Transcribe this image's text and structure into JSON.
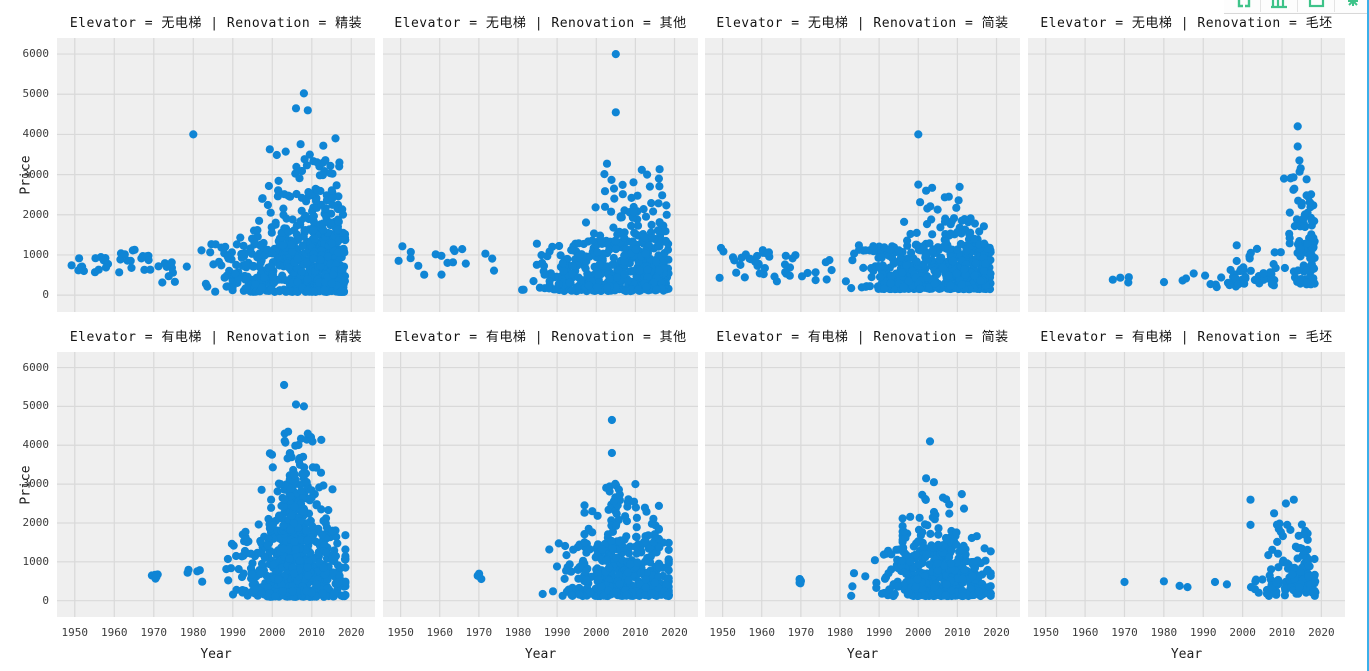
{
  "app": {
    "toolbar": {
      "buttons": [
        {
          "icon": "brackets-icon"
        },
        {
          "icon": "bar-chart-icon"
        },
        {
          "icon": "frame-icon"
        },
        {
          "icon": "settings-icon"
        }
      ],
      "accent_color": "#3ec389"
    },
    "right_edge_color": "#3bb0e9"
  },
  "chart_data": {
    "type": "scatter",
    "xlabel": "Year",
    "ylabel": "Price",
    "x_ticks": [
      1950,
      1960,
      1970,
      1980,
      1990,
      2000,
      2010,
      2020
    ],
    "y_ticks": [
      0,
      1000,
      2000,
      3000,
      4000,
      5000,
      6000
    ],
    "x_range": [
      1945.5,
      2026
    ],
    "y_range": [
      -420,
      6400
    ],
    "grid": true,
    "legend_position": "none",
    "point_color": "#0f85d5",
    "axes_bg": "#efefef",
    "grid_color": "#d9d9d9",
    "facet_rows": {
      "var": "Elevator",
      "values": [
        "无电梯",
        "有电梯"
      ]
    },
    "facet_cols": {
      "var": "Renovation",
      "values": [
        "精装",
        "其他",
        "简装",
        "毛坯"
      ]
    },
    "facets": [
      {
        "title": "Elevator = 无电梯 | Renovation = 精装",
        "row": 0,
        "col": 0,
        "clusters": [
          {
            "n": 14,
            "x": [
              1949,
              1960
            ],
            "y": [
              550,
              1000
            ],
            "xd": "u",
            "yd": "u"
          },
          {
            "n": 16,
            "x": [
              1961,
              1970
            ],
            "y": [
              550,
              1150
            ],
            "xd": "u",
            "yd": "u"
          },
          {
            "n": 10,
            "x": [
              1971,
              1980
            ],
            "y": [
              300,
              900
            ],
            "xd": "u",
            "yd": "u"
          },
          {
            "n": 520,
            "x": [
              1981,
              2018.5
            ],
            "y": [
              80,
              1550
            ],
            "xd": "r",
            "yd": {
              "p": 1.6
            }
          },
          {
            "n": 95,
            "x": [
              1992,
              2018
            ],
            "y": [
              1550,
              2600
            ],
            "xd": "r",
            "yd": {
              "p": 1.6
            }
          },
          {
            "n": 32,
            "x": [
              1999,
              2017
            ],
            "y": [
              2600,
              3900
            ],
            "xd": "u",
            "yd": {
              "p": 1.5
            }
          }
        ],
        "outliers": [
          [
            1980,
            4000
          ],
          [
            2008,
            5020
          ],
          [
            2006,
            4650
          ],
          [
            2009,
            4600
          ],
          [
            2016,
            3900
          ],
          [
            2017,
            3300
          ]
        ]
      },
      {
        "title": "Elevator = 无电梯 | Renovation = 其他",
        "row": 0,
        "col": 1,
        "clusters": [
          {
            "n": 4,
            "x": [
              1949,
              1953
            ],
            "y": [
              650,
              1300
            ],
            "xd": "u",
            "yd": "u"
          },
          {
            "n": 14,
            "x": [
              1954,
              1978
            ],
            "y": [
              450,
              1150
            ],
            "xd": "u",
            "yd": "u"
          },
          {
            "n": 400,
            "x": [
              1979,
              2018.5
            ],
            "y": [
              100,
              1350
            ],
            "xd": "r",
            "yd": {
              "p": 1.6
            }
          },
          {
            "n": 55,
            "x": [
              1994,
              2018
            ],
            "y": [
              1350,
              2300
            ],
            "xd": "r",
            "yd": {
              "p": 1.5
            }
          },
          {
            "n": 16,
            "x": [
              2002,
              2017
            ],
            "y": [
              2300,
              3300
            ],
            "xd": "u",
            "yd": {
              "p": 1.4
            }
          }
        ],
        "outliers": [
          [
            2005,
            6000
          ],
          [
            2005,
            4550
          ],
          [
            2018,
            2000
          ],
          [
            2016,
            2900
          ],
          [
            2013,
            3000
          ]
        ]
      },
      {
        "title": "Elevator = 无电梯 | Renovation = 简装",
        "row": 0,
        "col": 2,
        "clusters": [
          {
            "n": 24,
            "x": [
              1949,
              1962
            ],
            "y": [
              400,
              1200
            ],
            "xd": "u",
            "yd": "u"
          },
          {
            "n": 18,
            "x": [
              1963,
              1979
            ],
            "y": [
              300,
              1000
            ],
            "xd": "u",
            "yd": "u"
          },
          {
            "n": 470,
            "x": [
              1980,
              2018.5
            ],
            "y": [
              150,
              1250
            ],
            "xd": "r",
            "yd": {
              "p": 1.5
            }
          },
          {
            "n": 48,
            "x": [
              1994,
              2017
            ],
            "y": [
              1250,
              2100
            ],
            "xd": "r",
            "yd": {
              "p": 1.5
            }
          },
          {
            "n": 10,
            "x": [
              1998,
              2012
            ],
            "y": [
              2100,
              2700
            ],
            "xd": "u",
            "yd": {
              "p": 1.4
            }
          }
        ],
        "outliers": [
          [
            2000,
            4000
          ],
          [
            2000,
            2750
          ],
          [
            2002,
            2600
          ]
        ]
      },
      {
        "title": "Elevator = 无电梯 | Renovation = 毛坯",
        "row": 0,
        "col": 3,
        "clusters": [
          {
            "n": 4,
            "x": [
              1963,
              1973
            ],
            "y": [
              250,
              450
            ],
            "xd": "u",
            "yd": "u"
          },
          {
            "n": 42,
            "x": [
              1978,
              2009
            ],
            "y": [
              180,
              650
            ],
            "xd": "r",
            "yd": "u"
          },
          {
            "n": 12,
            "x": [
              1998,
              2011
            ],
            "y": [
              650,
              1250
            ],
            "xd": "u",
            "yd": "u"
          },
          {
            "n": 85,
            "x": [
              2011,
              2018.3
            ],
            "y": [
              250,
              2600
            ],
            "xd": "r",
            "yd": {
              "p": 1.5
            }
          },
          {
            "n": 9,
            "x": [
              2012,
              2017
            ],
            "y": [
              2600,
              3400
            ],
            "xd": "u",
            "yd": "u"
          }
        ],
        "outliers": [
          [
            2014,
            4200
          ],
          [
            2014,
            3700
          ],
          [
            2010.5,
            2900
          ]
        ]
      },
      {
        "title": "Elevator = 有电梯 | Renovation = 精装",
        "row": 1,
        "col": 0,
        "clusters": [
          {
            "n": 6,
            "x": [
              1969.5,
              1971
            ],
            "y": [
              520,
              680
            ],
            "xd": "u",
            "yd": "u"
          },
          {
            "n": 5,
            "x": [
              1977,
              1983
            ],
            "y": [
              400,
              900
            ],
            "xd": "u",
            "yd": "u"
          },
          {
            "n": 580,
            "x": [
              1984,
              2018.5
            ],
            "y": [
              100,
              1800
            ],
            "xd": {
              "g": [
                2006,
                6.5
              ]
            },
            "yd": {
              "p": 1.7
            }
          },
          {
            "n": 125,
            "x": [
              1993,
              2016
            ],
            "y": [
              1800,
              3000
            ],
            "xd": {
              "g": [
                2006,
                4.5
              ]
            },
            "yd": {
              "p": 1.5
            }
          },
          {
            "n": 38,
            "x": [
              1998,
              2014
            ],
            "y": [
              3000,
              4350
            ],
            "xd": {
              "g": [
                2006,
                3.5
              ]
            },
            "yd": {
              "p": 1.4
            }
          }
        ],
        "outliers": [
          [
            2003,
            5550
          ],
          [
            2006,
            5050
          ],
          [
            2008,
            5000
          ],
          [
            2004,
            4350
          ],
          [
            2009,
            4300
          ]
        ]
      },
      {
        "title": "Elevator = 有电梯 | Renovation = 其他",
        "row": 1,
        "col": 1,
        "clusters": [
          {
            "n": 5,
            "x": [
              1969.5,
              1971
            ],
            "y": [
              480,
              700
            ],
            "xd": "u",
            "yd": "u"
          },
          {
            "n": 400,
            "x": [
              1981,
              2018.5
            ],
            "y": [
              120,
              1500
            ],
            "xd": {
              "g": [
                2007,
                7
              ]
            },
            "yd": {
              "p": 1.7
            }
          },
          {
            "n": 55,
            "x": [
              1997,
              2016
            ],
            "y": [
              1500,
              2500
            ],
            "xd": {
              "g": [
                2007,
                5
              ]
            },
            "yd": {
              "p": 1.5
            }
          },
          {
            "n": 13,
            "x": [
              2002,
              2013
            ],
            "y": [
              2500,
              3100
            ],
            "xd": "u",
            "yd": {
              "p": 1.4
            }
          }
        ],
        "outliers": [
          [
            2004,
            4650
          ],
          [
            2004,
            3800
          ],
          [
            2010,
            3000
          ]
        ]
      },
      {
        "title": "Elevator = 有电梯 | Renovation = 简装",
        "row": 1,
        "col": 2,
        "clusters": [
          {
            "n": 5,
            "x": [
              1969.5,
              1971
            ],
            "y": [
              400,
              580
            ],
            "xd": "u",
            "yd": "u"
          },
          {
            "n": 410,
            "x": [
              1981,
              2018.5
            ],
            "y": [
              120,
              1350
            ],
            "xd": {
              "g": [
                2005,
                7
              ]
            },
            "yd": {
              "p": 1.7
            }
          },
          {
            "n": 50,
            "x": [
              1996,
              2015
            ],
            "y": [
              1350,
              2200
            ],
            "xd": {
              "g": [
                2004,
                5
              ]
            },
            "yd": {
              "p": 1.5
            }
          },
          {
            "n": 11,
            "x": [
              2000,
              2012
            ],
            "y": [
              2200,
              2750
            ],
            "xd": "u",
            "yd": {
              "p": 1.4
            }
          }
        ],
        "outliers": [
          [
            2003,
            4100
          ],
          [
            2002,
            3150
          ],
          [
            2004,
            3050
          ]
        ]
      },
      {
        "title": "Elevator = 有电梯 | Renovation = 毛坯",
        "row": 1,
        "col": 3,
        "clusters": [
          {
            "n": 45,
            "x": [
              1999,
              2018.5
            ],
            "y": [
              120,
              600
            ],
            "xd": "r",
            "yd": "u"
          },
          {
            "n": 75,
            "x": [
              2006,
              2018.5
            ],
            "y": [
              250,
              1150
            ],
            "xd": "r",
            "yd": {
              "p": 1.4
            }
          },
          {
            "n": 24,
            "x": [
              2001,
              2017
            ],
            "y": [
              1150,
              2000
            ],
            "xd": "r",
            "yd": {
              "p": 1.3
            }
          }
        ],
        "outliers": [
          [
            1970,
            480
          ],
          [
            1980,
            500
          ],
          [
            1984,
            380
          ],
          [
            1986,
            350
          ],
          [
            1993,
            480
          ],
          [
            1996,
            420
          ],
          [
            2002,
            2600
          ],
          [
            2002,
            1950
          ],
          [
            2013,
            2600
          ],
          [
            2008,
            2250
          ],
          [
            2011,
            2500
          ]
        ]
      }
    ]
  }
}
